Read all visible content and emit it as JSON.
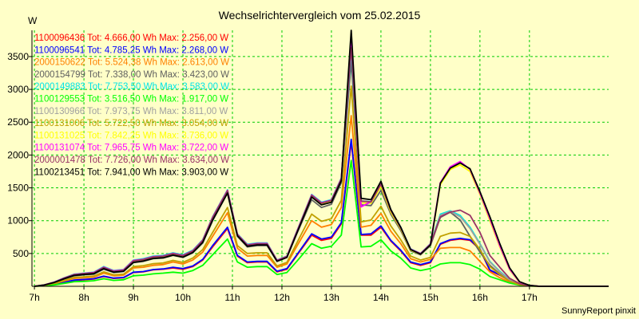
{
  "chart_data": {
    "type": "line",
    "title": "Wechselrichtervergleich vom 25.02.2015",
    "ylabel": "W",
    "xlabel": "",
    "footer": "SunnyReport pinxit",
    "x_tick_labels": [
      "7h",
      "8h",
      "9h",
      "10h",
      "11h",
      "12h",
      "13h",
      "14h",
      "15h",
      "16h",
      "17h"
    ],
    "x_ticks": [
      7,
      8,
      9,
      10,
      11,
      12,
      13,
      14,
      15,
      16,
      17
    ],
    "xlim": [
      6.95,
      18.6
    ],
    "y_ticks": [
      500,
      1000,
      1500,
      2000,
      2500,
      3000,
      3500
    ],
    "y_tick_labels": [
      "500",
      "1000",
      "1500",
      "2000",
      "2500",
      "3000",
      "3500"
    ],
    "ylim": [
      0,
      3900
    ],
    "grid": true,
    "legend_position": "top-left inside plot",
    "x": [
      7.0,
      7.2,
      7.4,
      7.6,
      7.8,
      8.0,
      8.2,
      8.4,
      8.6,
      8.8,
      9.0,
      9.2,
      9.4,
      9.6,
      9.8,
      10.0,
      10.2,
      10.4,
      10.6,
      10.9,
      11.1,
      11.3,
      11.5,
      11.7,
      11.9,
      12.1,
      12.3,
      12.6,
      12.8,
      13.0,
      13.2,
      13.4,
      13.6,
      13.8,
      14.0,
      14.2,
      14.4,
      14.6,
      14.8,
      15.0,
      15.2,
      15.4,
      15.6,
      15.8,
      16.0,
      16.2,
      16.4,
      16.6,
      16.8,
      17.0,
      17.2,
      17.4,
      17.6,
      17.8,
      18.0,
      18.6
    ],
    "series": [
      {
        "name": "1100096436 Tot: 4.666,00 Wh Max: 2.256,00 W",
        "color": "#ff0000",
        "values": [
          0,
          10,
          30,
          60,
          90,
          100,
          110,
          150,
          120,
          130,
          210,
          220,
          250,
          260,
          280,
          260,
          300,
          400,
          600,
          880,
          460,
          360,
          370,
          370,
          220,
          260,
          470,
          780,
          700,
          730,
          950,
          2200,
          780,
          780,
          900,
          690,
          540,
          360,
          320,
          360,
          640,
          700,
          720,
          700,
          560,
          240,
          170,
          80,
          30,
          10,
          0,
          0,
          0,
          0,
          0,
          0
        ]
      },
      {
        "name": "1100096541 Tot: 4.785,25 Wh Max: 2.268,00 W",
        "color": "#0000ff",
        "values": [
          0,
          12,
          32,
          62,
          95,
          105,
          115,
          155,
          125,
          135,
          215,
          225,
          255,
          265,
          290,
          270,
          310,
          410,
          620,
          900,
          470,
          370,
          380,
          380,
          230,
          270,
          480,
          800,
          720,
          750,
          970,
          2240,
          790,
          800,
          920,
          700,
          550,
          370,
          330,
          370,
          650,
          710,
          730,
          710,
          570,
          250,
          175,
          85,
          32,
          11,
          0,
          0,
          0,
          0,
          0,
          0
        ]
      },
      {
        "name": "2000150622 Tot: 5.524,38 Wh Max: 2.613,00 W",
        "color": "#ff8000",
        "values": [
          0,
          14,
          40,
          80,
          120,
          130,
          140,
          200,
          160,
          170,
          280,
          290,
          320,
          330,
          370,
          340,
          400,
          520,
          760,
          1120,
          580,
          460,
          470,
          470,
          290,
          340,
          610,
          1000,
          900,
          940,
          1200,
          2600,
          900,
          930,
          1110,
          840,
          650,
          420,
          370,
          410,
          580,
          590,
          590,
          540,
          380,
          220,
          130,
          60,
          20,
          5,
          0,
          0,
          0,
          0,
          0,
          0
        ]
      },
      {
        "name": "2000154799 Tot: 7.338,00 Wh Max: 3.423,00 W",
        "color": "#606060",
        "values": [
          0,
          18,
          55,
          110,
          160,
          175,
          185,
          260,
          210,
          225,
          360,
          380,
          420,
          430,
          470,
          440,
          510,
          660,
          1000,
          1420,
          760,
          600,
          620,
          620,
          380,
          440,
          800,
          1320,
          1200,
          1250,
          1580,
          3420,
          1240,
          1230,
          1460,
          1100,
          850,
          540,
          480,
          620,
          1050,
          1130,
          1010,
          760,
          520,
          320,
          190,
          80,
          28,
          8,
          0,
          0,
          0,
          0,
          0,
          0
        ]
      },
      {
        "name": "2000149883 Tot: 7.753,50 Wh Max: 3.583,00 W",
        "color": "#00e5e5",
        "values": [
          0,
          22,
          65,
          130,
          185,
          200,
          215,
          300,
          240,
          255,
          400,
          420,
          460,
          470,
          510,
          480,
          550,
          710,
          1060,
          1470,
          800,
          640,
          660,
          660,
          400,
          460,
          840,
          1400,
          1280,
          1320,
          1650,
          3580,
          1300,
          1290,
          1560,
          1160,
          900,
          570,
          500,
          650,
          1100,
          1150,
          1080,
          900,
          650,
          380,
          230,
          100,
          35,
          10,
          0,
          0,
          0,
          0,
          0,
          0
        ]
      },
      {
        "name": "1100129553 Tot: 3.516,50 Wh Max: 1.917,00 W",
        "color": "#00ff00",
        "values": [
          0,
          8,
          22,
          45,
          70,
          75,
          85,
          115,
          90,
          100,
          160,
          170,
          190,
          200,
          215,
          200,
          240,
          320,
          480,
          720,
          370,
          290,
          300,
          300,
          180,
          210,
          380,
          650,
          580,
          610,
          780,
          1917,
          600,
          610,
          710,
          540,
          430,
          280,
          240,
          270,
          340,
          360,
          360,
          330,
          260,
          150,
          100,
          50,
          18,
          5,
          0,
          0,
          0,
          0,
          0,
          0
        ]
      },
      {
        "name": "1100130966 Tot: 7.973,75 Wh Max: 3.811,00 W",
        "color": "#a0a0a0",
        "values": [
          0,
          21,
          62,
          125,
          178,
          195,
          208,
          290,
          232,
          248,
          390,
          410,
          450,
          460,
          500,
          470,
          540,
          700,
          1050,
          1460,
          790,
          630,
          650,
          650,
          395,
          455,
          830,
          1390,
          1270,
          1310,
          1640,
          3800,
          1290,
          1280,
          1550,
          1150,
          890,
          560,
          495,
          640,
          1080,
          1140,
          1060,
          880,
          640,
          370,
          220,
          95,
          33,
          10,
          0,
          0,
          0,
          0,
          0,
          0
        ]
      },
      {
        "name": "1100131006 Tot: 5.722,50 Wh Max: 3.054,00 W",
        "color": "#c0a000",
        "values": [
          0,
          16,
          45,
          90,
          135,
          145,
          155,
          220,
          175,
          185,
          300,
          315,
          345,
          355,
          395,
          365,
          430,
          560,
          820,
          1200,
          620,
          500,
          510,
          510,
          310,
          365,
          660,
          1100,
          990,
          1030,
          1310,
          3050,
          980,
          1010,
          1220,
          920,
          710,
          460,
          400,
          440,
          760,
          810,
          820,
          760,
          560,
          300,
          180,
          75,
          26,
          7,
          0,
          0,
          0,
          0,
          0,
          0
        ]
      },
      {
        "name": "1100131025 Tot: 7.842,25 Wh Max: 3.736,00 W",
        "color": "#ffff00",
        "values": [
          0,
          20,
          60,
          120,
          172,
          190,
          202,
          282,
          226,
          242,
          380,
          400,
          440,
          450,
          490,
          460,
          530,
          690,
          1030,
          1440,
          780,
          620,
          640,
          640,
          388,
          448,
          820,
          1370,
          1250,
          1290,
          1620,
          3730,
          1270,
          1265,
          1520,
          1130,
          875,
          550,
          490,
          630,
          1550,
          1780,
          1850,
          1750,
          1400,
          1000,
          600,
          250,
          60,
          12,
          0,
          0,
          0,
          0,
          0,
          0
        ]
      },
      {
        "name": "1100131074 Tot: 7.965,75 Wh Max: 3.722,00 W",
        "color": "#ff00ff",
        "values": [
          0,
          21,
          63,
          126,
          180,
          196,
          210,
          292,
          234,
          250,
          392,
          412,
          452,
          462,
          502,
          472,
          542,
          702,
          1052,
          1462,
          792,
          632,
          652,
          652,
          396,
          456,
          832,
          1392,
          1272,
          1312,
          1642,
          3720,
          1210,
          1290,
          1560,
          1160,
          895,
          565,
          498,
          645,
          1580,
          1820,
          1900,
          1780,
          1420,
          1030,
          620,
          260,
          65,
          14,
          0,
          0,
          0,
          0,
          0,
          0
        ]
      },
      {
        "name": "2000001478 Tot: 7.726,00 Wh Max: 3.634,00 W",
        "color": "#993366",
        "values": [
          0,
          21,
          62,
          124,
          177,
          194,
          206,
          288,
          230,
          246,
          388,
          408,
          448,
          458,
          498,
          468,
          538,
          698,
          1048,
          1458,
          788,
          628,
          648,
          648,
          393,
          453,
          828,
          1388,
          1268,
          1308,
          1638,
          3630,
          1300,
          1285,
          1555,
          1155,
          888,
          562,
          495,
          642,
          1060,
          1130,
          1160,
          1080,
          820,
          470,
          290,
          120,
          40,
          10,
          0,
          0,
          0,
          0,
          0,
          0
        ]
      },
      {
        "name": "1100213451 Tot: 7.941,00 Wh Max: 3.903,00 W",
        "color": "#000000",
        "values": [
          0,
          20,
          58,
          116,
          165,
          180,
          192,
          270,
          215,
          230,
          365,
          385,
          425,
          435,
          475,
          445,
          515,
          670,
          1010,
          1420,
          770,
          610,
          630,
          630,
          380,
          440,
          810,
          1360,
          1240,
          1280,
          1610,
          3900,
          1340,
          1320,
          1600,
          1170,
          900,
          560,
          490,
          630,
          1570,
          1800,
          1880,
          1790,
          1440,
          1060,
          650,
          280,
          70,
          15,
          0,
          0,
          0,
          0,
          0,
          0
        ]
      }
    ]
  }
}
